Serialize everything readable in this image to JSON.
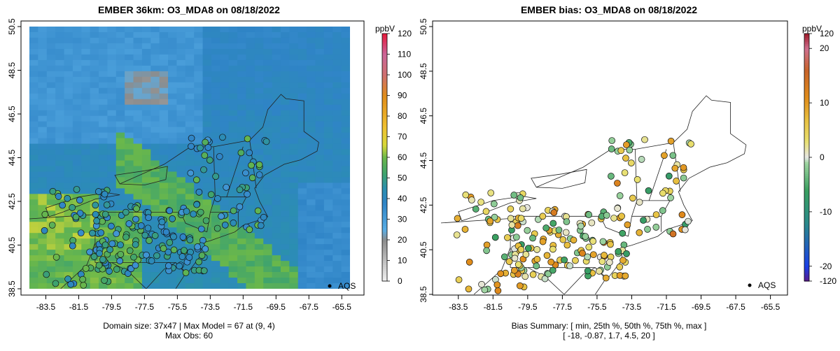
{
  "left_panel": {
    "title": "EMBER 36km: O3_MDA8 on 08/18/2022",
    "footer_line1": "Domain size: 37x47 | Max Model = 67 at (9, 4)",
    "footer_line2": "Max Obs: 60",
    "legend_unit": "ppbV",
    "aqs_label": "AQS"
  },
  "right_panel": {
    "title": "EMBER bias: O3_MDA8 on 08/18/2022",
    "footer_line1": "Bias Summary: [ min, 25th %, 50th %, 75th %, max ]",
    "footer_line2": "[ -18,   -0.87,   1.7,   4.5,   20 ]",
    "legend_unit": "ppbV",
    "aqs_label": "AQS"
  },
  "chart_data": [
    {
      "type": "heatmap",
      "title": "EMBER 36km: O3_MDA8 on 08/18/2022",
      "x_ticks": [
        "-83.5",
        "-81.5",
        "-79.5",
        "-77.5",
        "-75.5",
        "-73.5",
        "-71.5",
        "-69.5",
        "-67.5",
        "-65.5"
      ],
      "y_ticks": [
        "38.5",
        "40.5",
        "42.5",
        "44.5",
        "46.5",
        "48.5",
        "50.5"
      ],
      "xlim": [
        -84.5,
        -65
      ],
      "ylim": [
        38.5,
        50.5
      ],
      "colorbar_ticks": [
        "0",
        "10",
        "20",
        "30",
        "40",
        "50",
        "60",
        "70",
        "80",
        "90",
        "100",
        "110",
        "120"
      ],
      "colorbar_range": [
        0,
        120
      ],
      "grid_dims": "37x47",
      "max_model": 67,
      "max_model_cell": "(9, 4)",
      "max_obs": 60,
      "unit": "ppbV",
      "legend": "AQS"
    },
    {
      "type": "scatter",
      "title": "EMBER bias: O3_MDA8 on 08/18/2022",
      "x_ticks": [
        "-83.5",
        "-81.5",
        "-79.5",
        "-77.5",
        "-75.5",
        "-73.5",
        "-71.5",
        "-69.5",
        "-67.5",
        "-65.5"
      ],
      "y_ticks": [
        "38.5",
        "40.5",
        "42.5",
        "44.5",
        "46.5",
        "48.5",
        "50.5"
      ],
      "xlim": [
        -84.5,
        -65
      ],
      "ylim": [
        38.5,
        50.5
      ],
      "colorbar_ticks": [
        "-120",
        "-20",
        "-10",
        "0",
        "10",
        "20",
        "120"
      ],
      "colorbar_range": [
        -120,
        120
      ],
      "bias_summary": {
        "min": -18,
        "p25": -0.87,
        "p50": 1.7,
        "p75": 4.5,
        "max": 20
      },
      "unit": "ppbV",
      "legend": "AQS"
    }
  ]
}
